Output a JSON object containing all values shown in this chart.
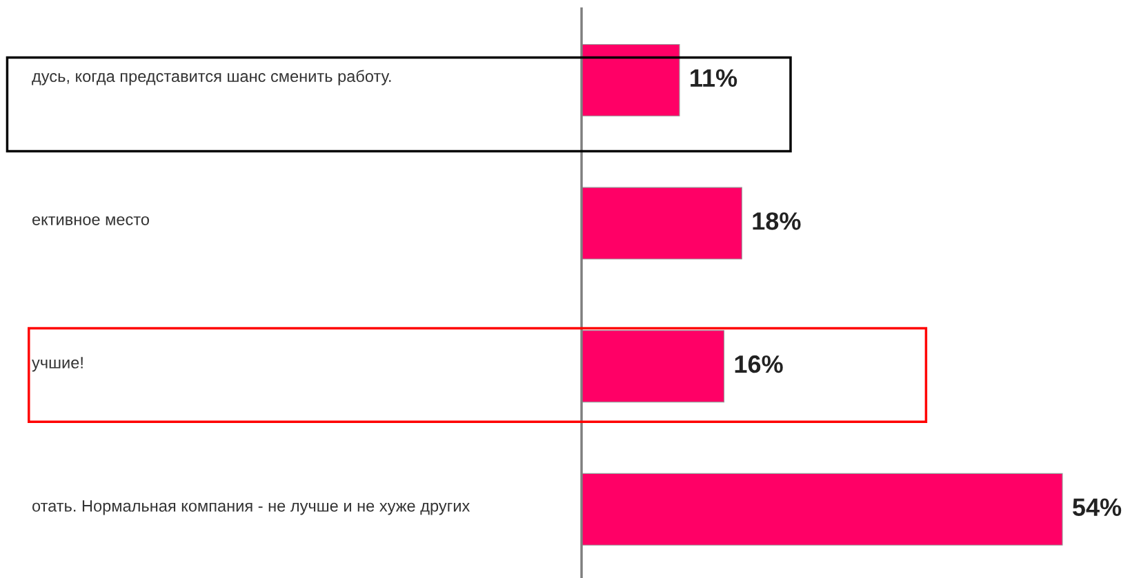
{
  "chart_data": {
    "type": "bar",
    "orientation": "horizontal",
    "categories": [
      "дусь, когда представится шанс сменить работу.",
      "ективное место",
      "учшие!",
      "отать. Нормальная компания - не лучше и не хуже других"
    ],
    "values": [
      11,
      18,
      16,
      54
    ],
    "value_labels": [
      "11%",
      "18%",
      "16%",
      "54%"
    ],
    "color": "#ff0066"
  }
}
